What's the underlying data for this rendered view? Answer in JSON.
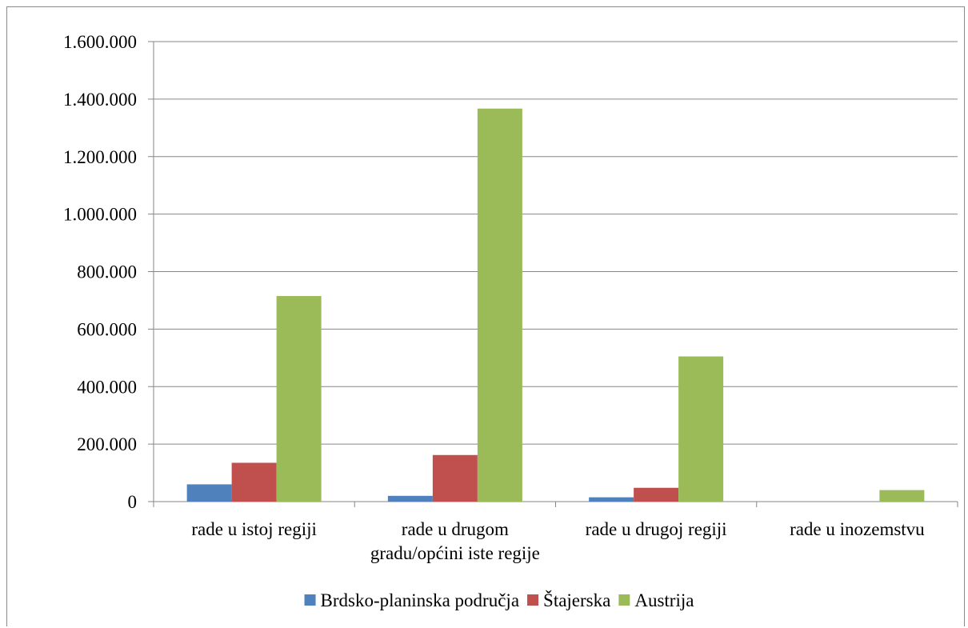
{
  "chart_data": {
    "type": "bar",
    "title": "",
    "xlabel": "",
    "ylabel": "",
    "categories": [
      [
        "rade u istoj regiji"
      ],
      [
        "rade u drugom",
        "gradu/općini iste regije"
      ],
      [
        "rade u drugoj regiji"
      ],
      [
        "rade u inozemstvu"
      ]
    ],
    "series": [
      {
        "name": "Brdsko-planinska područja",
        "color": "#4F81BD",
        "values": [
          60000,
          20000,
          15000,
          0
        ]
      },
      {
        "name": "Štajerska",
        "color": "#C0504D",
        "values": [
          135000,
          162000,
          48000,
          0
        ]
      },
      {
        "name": "Austrija",
        "color": "#9BBB59",
        "values": [
          715000,
          1367000,
          505000,
          40000
        ]
      }
    ],
    "ylim": [
      0,
      1600000
    ],
    "yticks": [
      0,
      200000,
      400000,
      600000,
      800000,
      1000000,
      1200000,
      1400000,
      1600000
    ],
    "ytick_labels": [
      "0",
      "200.000",
      "400.000",
      "600.000",
      "800.000",
      "1.000.000",
      "1.200.000",
      "1.400.000",
      "1.600.000"
    ],
    "grid": true,
    "legend_position": "bottom"
  }
}
